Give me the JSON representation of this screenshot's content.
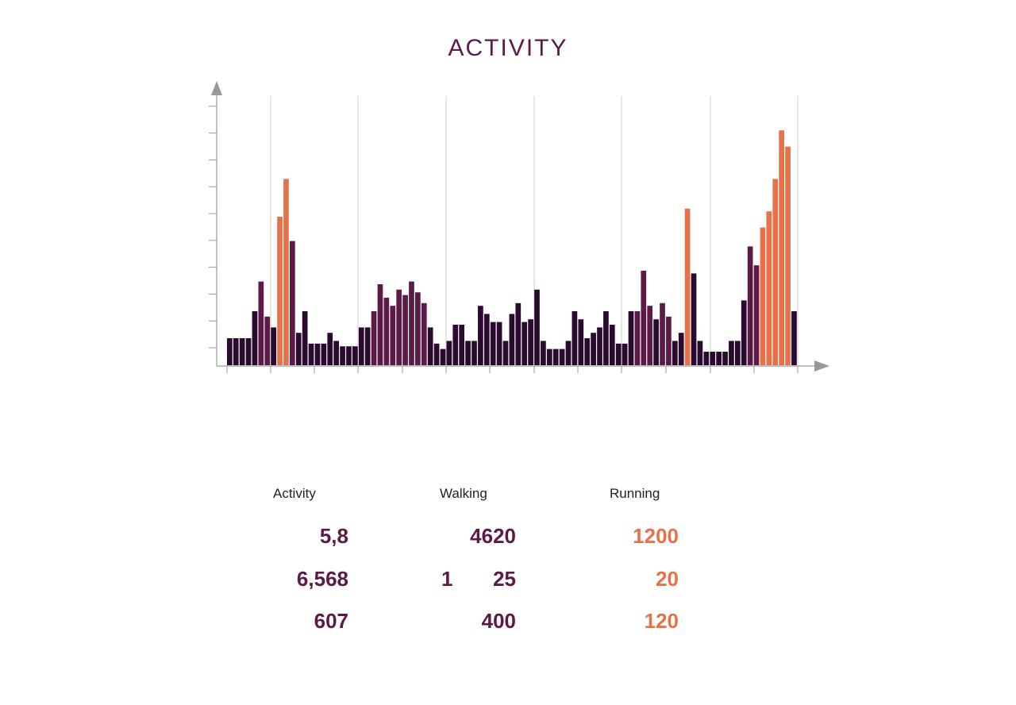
{
  "title": "ACTIVITY",
  "colors": {
    "dark": "#2a0a2e",
    "purple": "#5c1a47",
    "orange": "#e8714a",
    "axis": "#999999",
    "grid": "#cccccc"
  },
  "chart_data": {
    "type": "bar",
    "title": "ACTIVITY",
    "xlabel": "",
    "ylabel": "",
    "ylim": [
      0,
      10
    ],
    "grid": "vertical",
    "legend": "none",
    "values": [
      1.0,
      1.0,
      1.0,
      1.0,
      2.0,
      3.1,
      1.8,
      1.4,
      5.5,
      6.9,
      4.6,
      1.2,
      2.0,
      0.8,
      0.8,
      0.8,
      1.2,
      0.9,
      0.7,
      0.7,
      0.7,
      1.4,
      1.4,
      2.0,
      3.0,
      2.5,
      2.2,
      2.8,
      2.6,
      3.1,
      2.7,
      2.3,
      1.4,
      0.8,
      0.6,
      0.9,
      1.5,
      1.5,
      0.9,
      0.9,
      2.2,
      1.9,
      1.6,
      1.6,
      0.9,
      1.9,
      2.3,
      1.6,
      1.7,
      2.8,
      0.9,
      0.6,
      0.6,
      0.6,
      0.9,
      2.0,
      1.7,
      1.0,
      1.2,
      1.4,
      2.0,
      1.5,
      0.8,
      0.8,
      2.0,
      2.0,
      3.5,
      2.2,
      1.7,
      2.3,
      1.8,
      0.9,
      1.2,
      5.8,
      3.4,
      0.9,
      0.5,
      0.5,
      0.5,
      0.5,
      0.9,
      0.9,
      2.4,
      4.4,
      3.7,
      5.1,
      5.7,
      6.9,
      8.7,
      8.1,
      2.0
    ],
    "bar_category": [
      0,
      0,
      0,
      0,
      0,
      1,
      1,
      0,
      2,
      2,
      1,
      0,
      0,
      0,
      0,
      0,
      0,
      0,
      0,
      0,
      0,
      0,
      0,
      1,
      1,
      1,
      1,
      1,
      1,
      1,
      1,
      1,
      0,
      0,
      0,
      0,
      0,
      0,
      0,
      0,
      0,
      0,
      0,
      0,
      0,
      0,
      0,
      0,
      0,
      0,
      0,
      0,
      0,
      0,
      0,
      0,
      0,
      0,
      0,
      0,
      0,
      0,
      0,
      0,
      0,
      1,
      1,
      1,
      0,
      1,
      1,
      0,
      0,
      2,
      0,
      0,
      0,
      0,
      0,
      0,
      0,
      0,
      0,
      1,
      1,
      2,
      2,
      2,
      2,
      2,
      0
    ]
  },
  "stats": {
    "headers": [
      "Activity",
      "Walking",
      "Running"
    ],
    "activity": [
      "5,8",
      "6,568",
      "607"
    ],
    "walking": [
      "4620",
      "1       25",
      "400"
    ],
    "running": [
      "1200",
      "20",
      "120"
    ]
  }
}
